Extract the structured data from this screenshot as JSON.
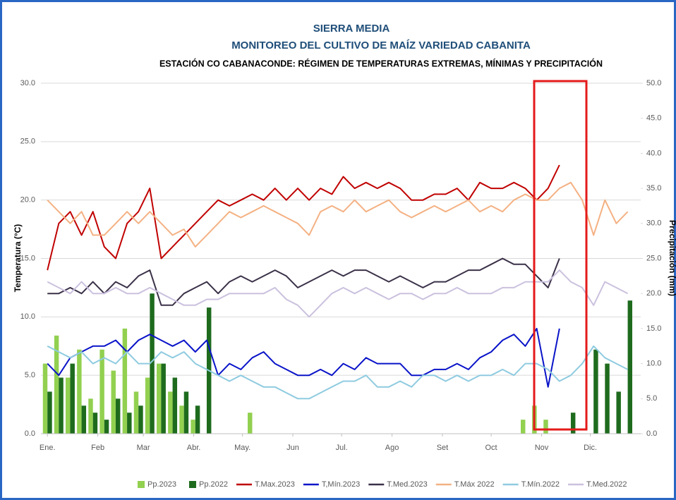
{
  "chart_data": {
    "type": "line",
    "title": "SIERRA MEDIA",
    "subtitle": "MONITOREO DEL CULTIVO DE MAÍZ VARIEDAD CABANITA",
    "caption": "ESTACIÓN CO CABANACONDE: RÉGIMEN DE TEMPERATURAS EXTREMAS, MÍNIMAS Y PRECIPITACIÓN",
    "y_label": "Temperatura (°C)",
    "y2_label": "Precipitación (mm)",
    "x": [
      1,
      8,
      15,
      22,
      29,
      36,
      43,
      50,
      57,
      64,
      71,
      78,
      85,
      92,
      99,
      106,
      113,
      120,
      127,
      134,
      141,
      148,
      155,
      162,
      169,
      176,
      183,
      190,
      197,
      204,
      211,
      218,
      225,
      232,
      239,
      246,
      253,
      260,
      267,
      274,
      281,
      288,
      295,
      302,
      309,
      316,
      323,
      330,
      337,
      344,
      351,
      358
    ],
    "xlim": [
      -3,
      366
    ],
    "xticks": [
      {
        "value": 1,
        "label": "Ene."
      },
      {
        "value": 32,
        "label": "Feb"
      },
      {
        "value": 60,
        "label": "Mar"
      },
      {
        "value": 91,
        "label": "Abr."
      },
      {
        "value": 121,
        "label": "May."
      },
      {
        "value": 152,
        "label": "Jun"
      },
      {
        "value": 182,
        "label": "Jul."
      },
      {
        "value": 213,
        "label": "Ago"
      },
      {
        "value": 244,
        "label": "Set"
      },
      {
        "value": 274,
        "label": "Oct"
      },
      {
        "value": 305,
        "label": "Nov"
      },
      {
        "value": 335,
        "label": "Dic."
      }
    ],
    "ylim": [
      0,
      30
    ],
    "yticks": [
      {
        "value": 0,
        "label": "0.0"
      },
      {
        "value": 5,
        "label": "5.0"
      },
      {
        "value": 10,
        "label": "10.0"
      },
      {
        "value": 15,
        "label": "15.0"
      },
      {
        "value": 20,
        "label": "20.0"
      },
      {
        "value": 25,
        "label": "25.0"
      },
      {
        "value": 30,
        "label": "30.0"
      }
    ],
    "y2lim": [
      0,
      50
    ],
    "y2ticks": [
      {
        "value": 0,
        "label": "0.0"
      },
      {
        "value": 5,
        "label": "5.0"
      },
      {
        "value": 10,
        "label": "10.0"
      },
      {
        "value": 15,
        "label": "15.0"
      },
      {
        "value": 20,
        "label": "20.0"
      },
      {
        "value": 25,
        "label": "25.0"
      },
      {
        "value": 30,
        "label": "30.0"
      },
      {
        "value": 35,
        "label": "35.0"
      },
      {
        "value": 40,
        "label": "40.0"
      },
      {
        "value": 45,
        "label": "45.0"
      },
      {
        "value": 50,
        "label": "50.0"
      }
    ],
    "grid": true,
    "legend": "bottom",
    "series": [
      {
        "name": "Pp.2023",
        "type": "bar",
        "axis": "y2",
        "color": "#92d050",
        "values": [
          10,
          14,
          8,
          12,
          5,
          12,
          9,
          15,
          6,
          8,
          10,
          6,
          4,
          2,
          0,
          0,
          0,
          0,
          3,
          0,
          0,
          0,
          0,
          0,
          0,
          0,
          0,
          0,
          0,
          0,
          0,
          0,
          0,
          0,
          0,
          0,
          0,
          0,
          0,
          0,
          0,
          0,
          2,
          4,
          2,
          0,
          null,
          null,
          null,
          null,
          null,
          null
        ]
      },
      {
        "name": "Pp.2022",
        "type": "bar",
        "axis": "y2",
        "color": "#1e6b1e",
        "values": [
          6,
          8,
          10,
          4,
          3,
          2,
          5,
          3,
          4,
          20,
          10,
          8,
          6,
          4,
          18,
          0,
          0,
          0,
          0,
          0,
          0,
          0,
          0,
          0,
          0,
          0,
          0,
          0,
          0,
          0,
          0,
          0,
          0,
          0,
          0,
          0,
          0,
          0,
          0,
          0,
          0,
          0,
          0,
          0,
          0,
          0,
          3,
          0,
          12,
          10,
          6,
          19
        ]
      },
      {
        "name": "T.Max.2023",
        "type": "line",
        "color": "#c00000",
        "values": [
          14,
          18,
          19,
          17,
          19,
          16,
          15,
          18,
          19,
          21,
          15,
          16,
          17,
          18,
          19,
          20,
          19.5,
          20,
          20.5,
          20,
          21,
          20,
          21,
          20,
          21,
          20.5,
          22,
          21,
          21.5,
          21,
          21.5,
          21,
          20,
          20,
          20.5,
          20.5,
          21,
          20,
          21.5,
          21,
          21,
          21.5,
          21,
          20,
          21,
          23,
          null,
          null,
          null,
          null,
          null,
          null
        ]
      },
      {
        "name": "T,Mín.2023",
        "type": "line",
        "color": "#0a14c8",
        "values": [
          6,
          5,
          6.5,
          7,
          7.5,
          7.5,
          8,
          7,
          8,
          8.5,
          8,
          7.5,
          8,
          7,
          8,
          5,
          6,
          5.5,
          6.5,
          7,
          6,
          5.5,
          5,
          5,
          5.5,
          5,
          6,
          5.5,
          6.5,
          6,
          6,
          6,
          5,
          5,
          5.5,
          5.5,
          6,
          5.5,
          6.5,
          7,
          8,
          8.5,
          7.5,
          9,
          4,
          9,
          null,
          null,
          null,
          null,
          null,
          null
        ]
      },
      {
        "name": "T.Med.2023",
        "type": "line",
        "color": "#3b3148",
        "values": [
          12,
          12,
          12.5,
          12,
          13,
          12,
          13,
          12.5,
          13.5,
          14,
          11,
          11,
          12,
          12.5,
          13,
          12,
          13,
          13.5,
          13,
          13.5,
          14,
          13.5,
          12.5,
          13,
          13.5,
          14,
          13.5,
          14,
          14,
          13.5,
          13,
          13.5,
          13,
          12.5,
          13,
          13,
          13.5,
          14,
          14,
          14.5,
          15,
          14.5,
          14.5,
          13.5,
          12.5,
          15,
          null,
          null,
          null,
          null,
          null,
          null
        ]
      },
      {
        "name": "T.Máx 2022",
        "type": "line",
        "color": "#f4b183",
        "values": [
          20,
          19,
          18,
          19,
          17,
          17,
          18,
          19,
          18,
          19,
          18,
          17,
          17.5,
          16,
          17,
          18,
          19,
          18.5,
          19,
          19.5,
          19,
          18.5,
          18,
          17,
          19,
          19.5,
          19,
          20,
          19,
          19.5,
          20,
          19,
          18.5,
          19,
          19.5,
          19,
          19.5,
          20,
          19,
          19.5,
          19,
          20,
          20.5,
          20,
          20,
          21,
          21.5,
          20,
          17,
          20,
          18,
          19
        ]
      },
      {
        "name": "T.Mín.2022",
        "type": "line",
        "color": "#8fcbe0",
        "values": [
          7.5,
          7,
          6.5,
          7,
          6,
          6.5,
          6,
          7,
          6,
          6,
          7,
          6.5,
          7,
          6,
          5.5,
          5,
          4.5,
          5,
          4.5,
          4,
          4,
          3.5,
          3,
          3,
          3.5,
          4,
          4.5,
          4.5,
          5,
          4,
          4,
          4.5,
          4,
          5,
          5,
          4.5,
          5,
          4.5,
          5,
          5,
          5.5,
          5,
          6,
          6,
          5.5,
          4.5,
          5,
          6,
          7.5,
          6.5,
          6,
          5.5
        ]
      },
      {
        "name": "T.Med.2022",
        "type": "line",
        "color": "#cbc1de",
        "values": [
          13,
          12.5,
          12,
          13,
          12,
          12,
          12.5,
          12,
          12,
          12.5,
          12,
          11.5,
          11,
          11,
          11.5,
          11.5,
          12,
          12,
          12,
          12,
          12.5,
          11.5,
          11,
          10,
          11,
          12,
          12.5,
          12,
          12.5,
          12,
          11.5,
          12,
          12,
          11.5,
          12,
          12,
          12.5,
          12,
          12,
          12,
          12.5,
          12.5,
          13,
          13,
          13,
          14,
          13,
          12.5,
          11,
          13,
          12.5,
          12
        ]
      }
    ]
  }
}
